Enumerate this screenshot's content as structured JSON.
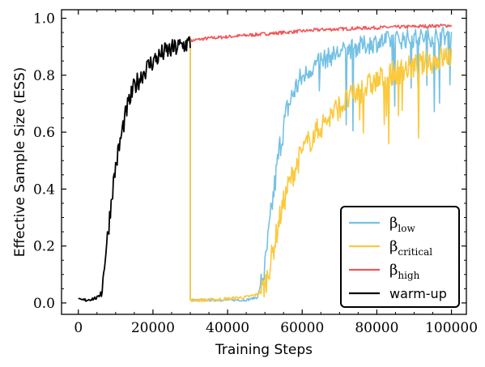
{
  "chart_data": {
    "type": "line",
    "xlabel": "Training Steps",
    "ylabel": "Effective Sample Size (ESS)",
    "xlim": [
      -4500,
      104000
    ],
    "ylim": [
      -0.04,
      1.03
    ],
    "x_ticks": [
      0,
      20000,
      40000,
      60000,
      80000,
      100000
    ],
    "x_tick_labels": [
      "0",
      "20000",
      "40000",
      "60000",
      "80000",
      "100000"
    ],
    "y_ticks": [
      0.0,
      0.2,
      0.4,
      0.6,
      0.8,
      1.0
    ],
    "y_tick_labels": [
      "0.0",
      "0.2",
      "0.4",
      "0.6",
      "0.8",
      "1.0"
    ],
    "legend_position": "bottom-right",
    "series": [
      {
        "key": "warmup",
        "name": "warm-up",
        "color": "#000000",
        "x": [
          0,
          2000,
          4000,
          5500,
          6500,
          7000,
          8000,
          9000,
          10000,
          11000,
          12000,
          13000,
          14000,
          15000,
          16000,
          17000,
          18000,
          19000,
          20000,
          21000,
          22000,
          23000,
          24000,
          25000,
          26000,
          27000,
          28000,
          29000,
          30000
        ],
        "y": [
          0.01,
          0.01,
          0.015,
          0.02,
          0.06,
          0.14,
          0.25,
          0.38,
          0.48,
          0.55,
          0.62,
          0.68,
          0.72,
          0.76,
          0.78,
          0.8,
          0.82,
          0.835,
          0.85,
          0.86,
          0.87,
          0.88,
          0.885,
          0.89,
          0.895,
          0.9,
          0.905,
          0.91,
          0.915
        ]
      },
      {
        "key": "high",
        "name": "β",
        "name_sub": "high",
        "color": "#f2565a",
        "x": [
          30000,
          32000,
          35000,
          40000,
          45000,
          50000,
          55000,
          60000,
          65000,
          70000,
          75000,
          80000,
          85000,
          90000,
          95000,
          100000
        ],
        "y": [
          0.92,
          0.925,
          0.93,
          0.935,
          0.94,
          0.945,
          0.95,
          0.955,
          0.96,
          0.962,
          0.965,
          0.967,
          0.969,
          0.971,
          0.973,
          0.975
        ]
      },
      {
        "key": "low",
        "name": "β",
        "name_sub": "low",
        "color": "#74c1e4",
        "x": [
          30000,
          35000,
          40000,
          45000,
          48000,
          50000,
          52000,
          54000,
          56000,
          58000,
          60000,
          62000,
          65000,
          70000,
          75000,
          80000,
          85000,
          90000,
          95000,
          100000
        ],
        "y": [
          0.01,
          0.01,
          0.01,
          0.01,
          0.02,
          0.12,
          0.35,
          0.55,
          0.68,
          0.75,
          0.79,
          0.82,
          0.85,
          0.88,
          0.9,
          0.915,
          0.925,
          0.93,
          0.935,
          0.94
        ]
      },
      {
        "key": "critical",
        "name": "β",
        "name_sub": "critical",
        "color": "#fbc93d",
        "x": [
          30000,
          35000,
          40000,
          45000,
          48000,
          50000,
          52000,
          54000,
          56000,
          58000,
          60000,
          62000,
          65000,
          70000,
          75000,
          80000,
          85000,
          90000,
          95000,
          100000
        ],
        "y": [
          0.01,
          0.01,
          0.015,
          0.02,
          0.03,
          0.06,
          0.17,
          0.3,
          0.4,
          0.47,
          0.53,
          0.57,
          0.62,
          0.69,
          0.74,
          0.78,
          0.81,
          0.83,
          0.85,
          0.87
        ]
      }
    ]
  }
}
